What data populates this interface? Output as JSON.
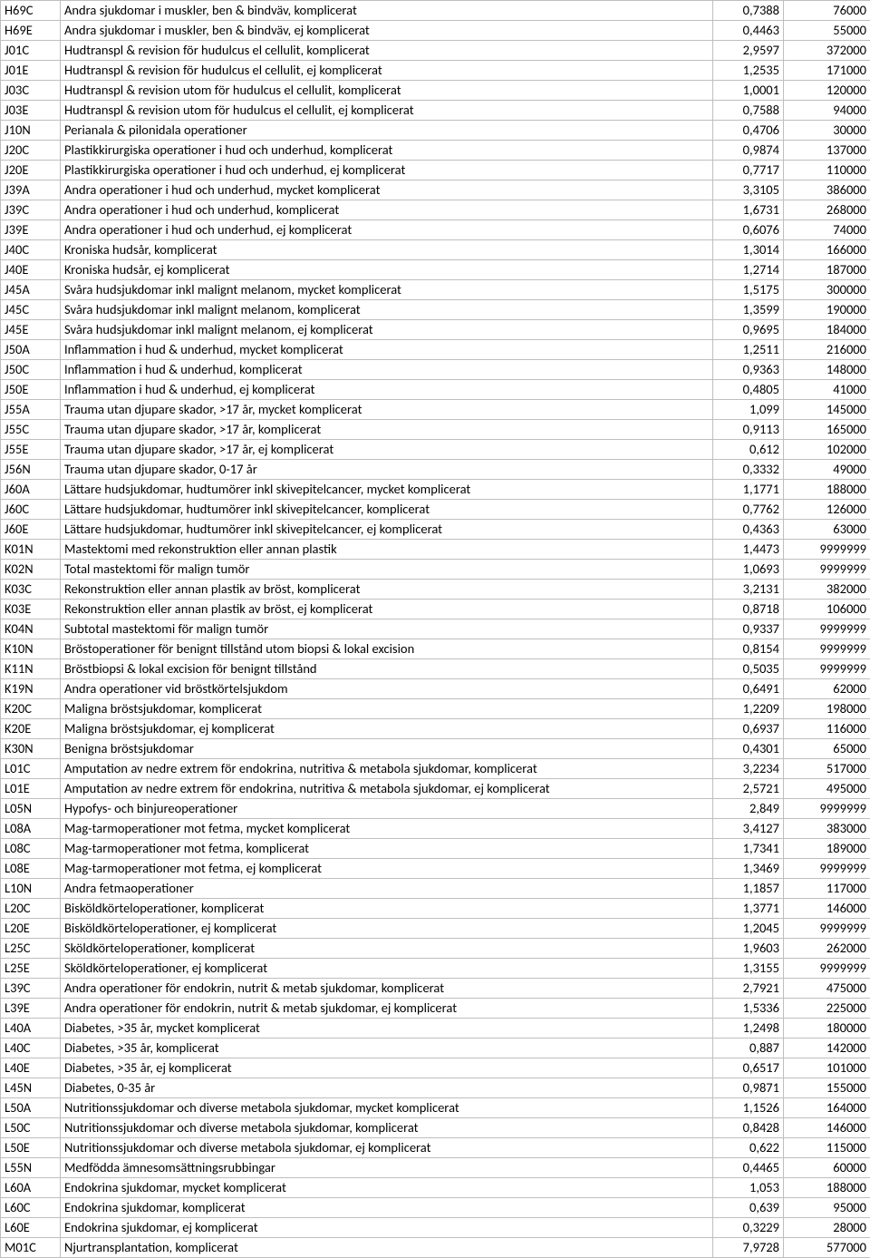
{
  "columns": {
    "widths": [
      66,
      720,
      78,
      96
    ],
    "align": [
      "left",
      "left",
      "right",
      "right"
    ]
  },
  "rows": [
    [
      "H69C",
      "Andra sjukdomar i muskler, ben & bindväv, komplicerat",
      "0,7388",
      "76000"
    ],
    [
      "H69E",
      "Andra sjukdomar i muskler, ben & bindväv, ej komplicerat",
      "0,4463",
      "55000"
    ],
    [
      "J01C",
      "Hudtranspl & revision för hudulcus el cellulit, komplicerat",
      "2,9597",
      "372000"
    ],
    [
      "J01E",
      "Hudtranspl & revision för hudulcus el cellulit, ej komplicerat",
      "1,2535",
      "171000"
    ],
    [
      "J03C",
      "Hudtranspl & revision utom för hudulcus el cellulit, komplicerat",
      "1,0001",
      "120000"
    ],
    [
      "J03E",
      "Hudtranspl & revision utom för hudulcus el cellulit, ej komplicerat",
      "0,7588",
      "94000"
    ],
    [
      "J10N",
      "Perianala & pilonidala operationer",
      "0,4706",
      "30000"
    ],
    [
      "J20C",
      "Plastikkirurgiska operationer i hud och underhud, komplicerat",
      "0,9874",
      "137000"
    ],
    [
      "J20E",
      "Plastikkirurgiska operationer i hud och underhud, ej komplicerat",
      "0,7717",
      "110000"
    ],
    [
      "J39A",
      "Andra operationer i hud och underhud, mycket komplicerat",
      "3,3105",
      "386000"
    ],
    [
      "J39C",
      "Andra operationer i hud och underhud, komplicerat",
      "1,6731",
      "268000"
    ],
    [
      "J39E",
      "Andra operationer i hud och underhud, ej komplicerat",
      "0,6076",
      "74000"
    ],
    [
      "J40C",
      "Kroniska hudsår, komplicerat",
      "1,3014",
      "166000"
    ],
    [
      "J40E",
      "Kroniska hudsår, ej komplicerat",
      "1,2714",
      "187000"
    ],
    [
      "J45A",
      "Svåra hudsjukdomar inkl malignt melanom, mycket komplicerat",
      "1,5175",
      "300000"
    ],
    [
      "J45C",
      "Svåra hudsjukdomar inkl malignt melanom, komplicerat",
      "1,3599",
      "190000"
    ],
    [
      "J45E",
      "Svåra hudsjukdomar inkl malignt melanom, ej komplicerat",
      "0,9695",
      "184000"
    ],
    [
      "J50A",
      "Inflammation i hud & underhud, mycket komplicerat",
      "1,2511",
      "216000"
    ],
    [
      "J50C",
      "Inflammation i hud & underhud, komplicerat",
      "0,9363",
      "148000"
    ],
    [
      "J50E",
      "Inflammation i hud & underhud, ej komplicerat",
      "0,4805",
      "41000"
    ],
    [
      "J55A",
      "Trauma utan djupare skador, >17 år, mycket komplicerat",
      "1,099",
      "145000"
    ],
    [
      "J55C",
      "Trauma utan djupare skador, >17 år, komplicerat",
      "0,9113",
      "165000"
    ],
    [
      "J55E",
      "Trauma utan djupare skador, >17 år, ej komplicerat",
      "0,612",
      "102000"
    ],
    [
      "J56N",
      "Trauma utan djupare skador, 0-17 år",
      "0,3332",
      "49000"
    ],
    [
      "J60A",
      "Lättare hudsjukdomar, hudtumörer inkl skivepitelcancer, mycket komplicerat",
      "1,1771",
      "188000"
    ],
    [
      "J60C",
      "Lättare hudsjukdomar, hudtumörer inkl skivepitelcancer, komplicerat",
      "0,7762",
      "126000"
    ],
    [
      "J60E",
      "Lättare hudsjukdomar, hudtumörer inkl skivepitelcancer, ej komplicerat",
      "0,4363",
      "63000"
    ],
    [
      "K01N",
      "Mastektomi med rekonstruktion eller annan plastik",
      "1,4473",
      "9999999"
    ],
    [
      "K02N",
      "Total mastektomi för malign tumör",
      "1,0693",
      "9999999"
    ],
    [
      "K03C",
      "Rekonstruktion eller annan plastik av bröst, komplicerat",
      "3,2131",
      "382000"
    ],
    [
      "K03E",
      "Rekonstruktion eller annan plastik av bröst, ej komplicerat",
      "0,8718",
      "106000"
    ],
    [
      "K04N",
      "Subtotal mastektomi för malign tumör",
      "0,9337",
      "9999999"
    ],
    [
      "K10N",
      "Bröstoperationer för benignt tillstånd utom biopsi & lokal excision",
      "0,8154",
      "9999999"
    ],
    [
      "K11N",
      "Bröstbiopsi & lokal excision för benignt tillstånd",
      "0,5035",
      "9999999"
    ],
    [
      "K19N",
      "Andra operationer vid bröstkörtelsjukdom",
      "0,6491",
      "62000"
    ],
    [
      "K20C",
      "Maligna bröstsjukdomar, komplicerat",
      "1,2209",
      "198000"
    ],
    [
      "K20E",
      "Maligna bröstsjukdomar, ej komplicerat",
      "0,6937",
      "116000"
    ],
    [
      "K30N",
      "Benigna bröstsjukdomar",
      "0,4301",
      "65000"
    ],
    [
      "L01C",
      "Amputation av nedre extrem för endokrina, nutritiva & metabola sjukdomar, komplicerat",
      "3,2234",
      "517000"
    ],
    [
      "L01E",
      "Amputation av nedre extrem för endokrina, nutritiva & metabola sjukdomar, ej komplicerat",
      "2,5721",
      "495000"
    ],
    [
      "L05N",
      "Hypofys- och binjureoperationer",
      "2,849",
      "9999999"
    ],
    [
      "L08A",
      "Mag-tarmoperationer mot fetma, mycket komplicerat",
      "3,4127",
      "383000"
    ],
    [
      "L08C",
      "Mag-tarmoperationer mot fetma, komplicerat",
      "1,7341",
      "189000"
    ],
    [
      "L08E",
      "Mag-tarmoperationer mot fetma, ej komplicerat",
      "1,3469",
      "9999999"
    ],
    [
      "L10N",
      "Andra fetmaoperationer",
      "1,1857",
      "117000"
    ],
    [
      "L20C",
      "Bisköldkörteloperationer, komplicerat",
      "1,3771",
      "146000"
    ],
    [
      "L20E",
      "Bisköldkörteloperationer, ej komplicerat",
      "1,2045",
      "9999999"
    ],
    [
      "L25C",
      "Sköldkörteloperationer, komplicerat",
      "1,9603",
      "262000"
    ],
    [
      "L25E",
      "Sköldkörteloperationer, ej komplicerat",
      "1,3155",
      "9999999"
    ],
    [
      "L39C",
      "Andra operationer för endokrin, nutrit & metab sjukdomar, komplicerat",
      "2,7921",
      "475000"
    ],
    [
      "L39E",
      "Andra operationer för endokrin, nutrit & metab sjukdomar, ej komplicerat",
      "1,5336",
      "225000"
    ],
    [
      "L40A",
      "Diabetes, >35 år, mycket komplicerat",
      "1,2498",
      "180000"
    ],
    [
      "L40C",
      "Diabetes, >35 år, komplicerat",
      "0,887",
      "142000"
    ],
    [
      "L40E",
      "Diabetes, >35 år, ej komplicerat",
      "0,6517",
      "101000"
    ],
    [
      "L45N",
      "Diabetes, 0-35 år",
      "0,9871",
      "155000"
    ],
    [
      "L50A",
      "Nutritionssjukdomar och diverse metabola sjukdomar, mycket komplicerat",
      "1,1526",
      "164000"
    ],
    [
      "L50C",
      "Nutritionssjukdomar och diverse metabola sjukdomar, komplicerat",
      "0,8428",
      "146000"
    ],
    [
      "L50E",
      "Nutritionssjukdomar och diverse metabola sjukdomar, ej komplicerat",
      "0,622",
      "115000"
    ],
    [
      "L55N",
      "Medfödda ämnesomsättningsrubbingar",
      "0,4465",
      "60000"
    ],
    [
      "L60A",
      "Endokrina sjukdomar, mycket komplicerat",
      "1,053",
      "188000"
    ],
    [
      "L60C",
      "Endokrina sjukdomar, komplicerat",
      "0,639",
      "95000"
    ],
    [
      "L60E",
      "Endokrina sjukdomar, ej komplicerat",
      "0,3229",
      "28000"
    ],
    [
      "M01C",
      "Njurtransplantation, komplicerat",
      "7,9728",
      "577000"
    ]
  ]
}
